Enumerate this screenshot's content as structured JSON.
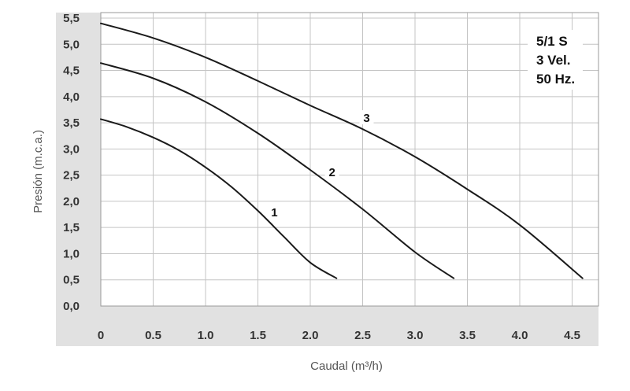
{
  "chart_data": {
    "type": "line",
    "title": "",
    "xlabel": "Caudal (m³/h)",
    "ylabel": "Presión (m.c.a.)",
    "xlim": [
      0,
      4.7
    ],
    "ylim": [
      0,
      5.7
    ],
    "grid": true,
    "x_ticks": [
      "0",
      "0.5",
      "1.0",
      "1.5",
      "2.0",
      "2.5",
      "3.0",
      "3.5",
      "4.0",
      "4.5"
    ],
    "x_tick_values": [
      0,
      0.5,
      1.0,
      1.5,
      2.0,
      2.5,
      3.0,
      3.5,
      4.0,
      4.5
    ],
    "y_ticks": [
      "0,0",
      "0,5",
      "1,0",
      "1,5",
      "2,0",
      "2,5",
      "3,0",
      "3,5",
      "4,0",
      "4,5",
      "5,0",
      "5,5"
    ],
    "y_tick_values": [
      0,
      0.5,
      1.0,
      1.5,
      2.0,
      2.5,
      3.0,
      3.5,
      4.0,
      4.5,
      5.0,
      5.5
    ],
    "info_box": [
      "5/1 S",
      "3 Vel.",
      "50 Hz."
    ],
    "series": [
      {
        "name": "1",
        "x": [
          0,
          0.25,
          0.5,
          0.75,
          1.0,
          1.25,
          1.5,
          1.75,
          2.0,
          2.25
        ],
        "y": [
          3.57,
          3.42,
          3.22,
          2.97,
          2.65,
          2.27,
          1.82,
          1.32,
          0.83,
          0.53
        ]
      },
      {
        "name": "2",
        "x": [
          0,
          0.5,
          1.0,
          1.5,
          2.0,
          2.5,
          3.0,
          3.37
        ],
        "y": [
          4.64,
          4.35,
          3.9,
          3.3,
          2.6,
          1.85,
          1.03,
          0.53
        ]
      },
      {
        "name": "3",
        "x": [
          0,
          0.5,
          1.0,
          1.5,
          2.0,
          2.5,
          3.0,
          3.5,
          4.0,
          4.6
        ],
        "y": [
          5.4,
          5.12,
          4.75,
          4.3,
          3.83,
          3.38,
          2.85,
          2.23,
          1.55,
          0.53
        ]
      }
    ]
  }
}
